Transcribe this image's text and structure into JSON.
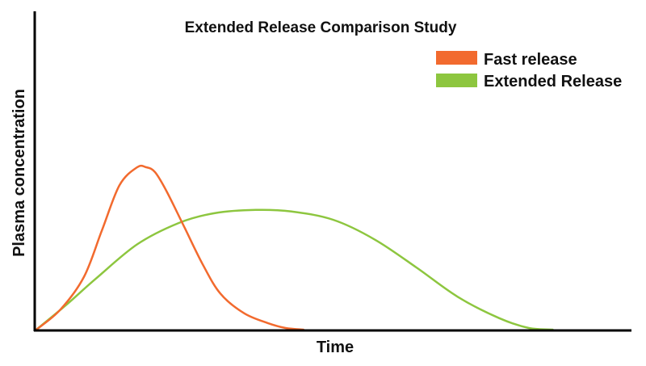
{
  "chart_data": {
    "type": "line",
    "title": "Extended Release Comparison Study",
    "xlabel": "Time",
    "ylabel": "Plasma concentration",
    "grid": false,
    "legend_position": "top-right",
    "xlim": [
      0,
      100
    ],
    "ylim": [
      0,
      100
    ],
    "series": [
      {
        "name": "Fast release",
        "color": "#f26a2e",
        "x": [
          0,
          4,
          8,
          11,
          14,
          17,
          18.5,
          20,
          22,
          25,
          28,
          31,
          35,
          39,
          42,
          45
        ],
        "y": [
          0,
          12,
          32,
          60,
          88,
          99,
          99,
          96,
          84,
          62,
          40,
          22,
          10,
          4,
          1,
          0
        ]
      },
      {
        "name": "Extended Release",
        "color": "#8dc63f",
        "x": [
          0,
          5,
          10,
          17,
          24,
          30,
          37,
          43,
          50,
          57,
          64,
          71,
          78,
          83,
          87
        ],
        "y": [
          0,
          15,
          31,
          52,
          65,
          71,
          73,
          72,
          67,
          55,
          38,
          20,
          7,
          1,
          0
        ]
      }
    ]
  }
}
